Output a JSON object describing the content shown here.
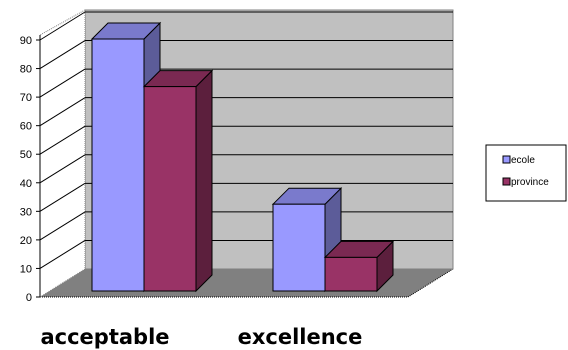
{
  "chart_data": {
    "type": "bar",
    "style": "3d-clustered-column",
    "categories": [
      "acceptable",
      "excellence"
    ],
    "series": [
      {
        "name": "ecole",
        "values": [
          90,
          31
        ],
        "color": "#9999ff"
      },
      {
        "name": "province",
        "values": [
          73,
          12
        ],
        "color": "#993366"
      }
    ],
    "ylim": [
      0,
      90
    ],
    "yticks": [
      0,
      10,
      20,
      30,
      40,
      50,
      60,
      70,
      80,
      90
    ],
    "grid": true,
    "legend": "right",
    "wall_color": "#c0c0c0",
    "floor_color": "#808080"
  }
}
